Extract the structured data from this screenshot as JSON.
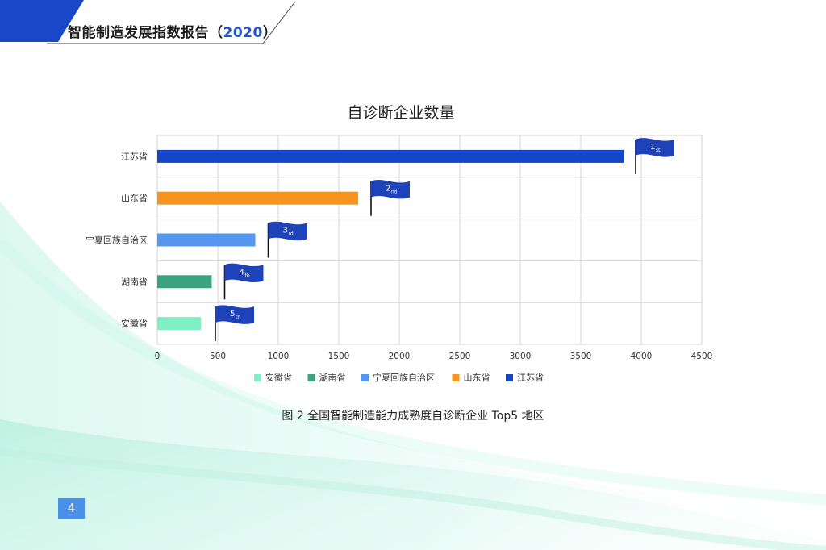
{
  "header": {
    "title_main": "智能制造发展指数报告",
    "paren_open": "（",
    "year": "2020",
    "paren_close": "）"
  },
  "chart_data": {
    "type": "bar",
    "orientation": "horizontal",
    "title": "自诊断企业数量",
    "categories": [
      "江苏省",
      "山东省",
      "宁夏回族自治区",
      "湖南省",
      "安徽省"
    ],
    "values": [
      3860,
      1660,
      810,
      450,
      360
    ],
    "colors": [
      "#1545c8",
      "#f7941d",
      "#5597ee",
      "#3aa47e",
      "#7ef0c4"
    ],
    "xlim": [
      0,
      4500
    ],
    "xticks": [
      0,
      500,
      1000,
      1500,
      2000,
      2500,
      3000,
      3500,
      4000,
      4500
    ],
    "grid": true,
    "legend_position": "bottom",
    "legend": [
      {
        "label": "安徽省",
        "color": "#7ef0c4"
      },
      {
        "label": "湖南省",
        "color": "#3aa47e"
      },
      {
        "label": "宁夏回族自治区",
        "color": "#5597ee"
      },
      {
        "label": "山东省",
        "color": "#f7941d"
      },
      {
        "label": "江苏省",
        "color": "#1545c8"
      }
    ],
    "rank_flags": [
      {
        "num": "1",
        "suffix": "st"
      },
      {
        "num": "2",
        "suffix": "nd"
      },
      {
        "num": "3",
        "suffix": "rd"
      },
      {
        "num": "4",
        "suffix": "th"
      },
      {
        "num": "5",
        "suffix": "th"
      }
    ],
    "flag_color": "#1e43b8"
  },
  "caption": "图 2 全国智能制造能力成熟度自诊断企业 Top5 地区",
  "page_number": "4"
}
